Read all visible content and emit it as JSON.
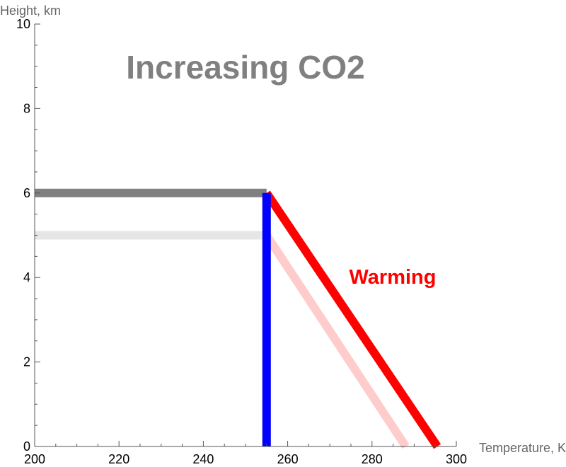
{
  "chart_data": {
    "type": "line",
    "xlabel": "Temperature, K",
    "ylabel": "Height, km",
    "xlim": [
      200,
      300
    ],
    "ylim": [
      0,
      10
    ],
    "x_ticks": [
      200,
      220,
      240,
      260,
      280,
      300
    ],
    "y_ticks": [
      0,
      2,
      4,
      6,
      8,
      10
    ],
    "grid": false,
    "annotations": {
      "title": "Increasing CO2",
      "warming": "Warming"
    },
    "series": [
      {
        "color": "#e6e6e6",
        "points": [
          [
            200,
            5
          ],
          [
            255,
            5
          ]
        ]
      },
      {
        "color": "#ffcccc",
        "points": [
          [
            255,
            5
          ],
          [
            288,
            0
          ]
        ]
      },
      {
        "color": "#808080",
        "points": [
          [
            200,
            6
          ],
          [
            255,
            6
          ]
        ]
      },
      {
        "color": "#ff0000",
        "points": [
          [
            255,
            6
          ],
          [
            295.5,
            0
          ]
        ]
      },
      {
        "color": "#0000ff",
        "points": [
          [
            255,
            0
          ],
          [
            255,
            6
          ]
        ]
      }
    ]
  }
}
